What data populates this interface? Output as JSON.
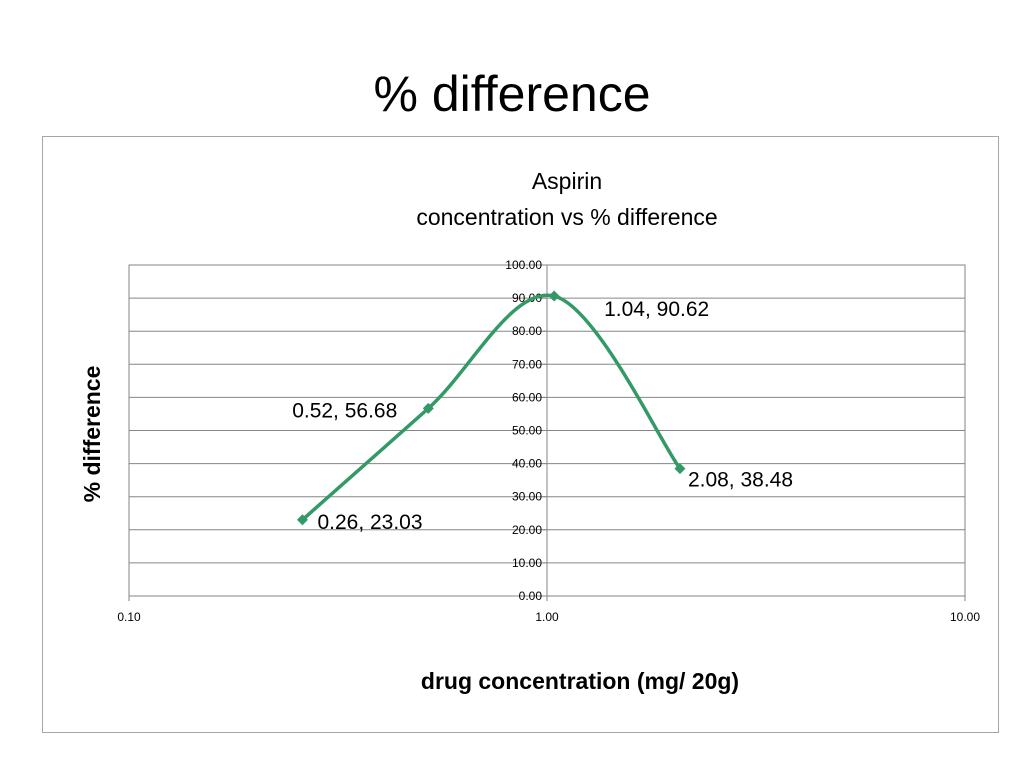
{
  "slide": {
    "title": "% difference"
  },
  "chart_data": {
    "type": "scatter",
    "title": [
      "Aspirin",
      "concentration vs % difference"
    ],
    "xlabel": "drug concentration (mg/ 20g)",
    "ylabel": "% difference",
    "xscale": "log",
    "xlim": [
      0.1,
      10
    ],
    "ylim": [
      0,
      100
    ],
    "xticks": [
      "0.10",
      "1.00",
      "10.00"
    ],
    "yticks": [
      "0.00",
      "10.00",
      "20.00",
      "30.00",
      "40.00",
      "50.00",
      "60.00",
      "70.00",
      "80.00",
      "90.00",
      "100.00"
    ],
    "grid": true,
    "legend": "none",
    "line": "smooth",
    "series": [
      {
        "color": "#339966",
        "x": [
          0.26,
          0.52,
          1.04,
          2.08
        ],
        "y": [
          23.03,
          56.68,
          90.62,
          38.48
        ],
        "labels": [
          "0.26, 23.03",
          "0.52, 56.68",
          "1.04, 90.62",
          "2.08, 38.48"
        ]
      }
    ]
  }
}
